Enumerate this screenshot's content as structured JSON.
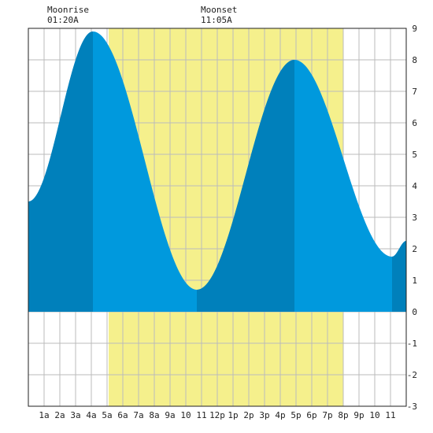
{
  "header": {
    "moonrise_label": "Moonrise",
    "moonrise_time": "01:20A",
    "moonset_label": "Moonset",
    "moonset_time": "11:05A"
  },
  "chart_data": {
    "type": "area",
    "xlabel": "",
    "ylabel": "",
    "xlim": [
      0,
      24
    ],
    "ylim": [
      -3,
      9
    ],
    "grid": true,
    "x_ticks": [
      {
        "x": 1,
        "label": "1a"
      },
      {
        "x": 2,
        "label": "2a"
      },
      {
        "x": 3,
        "label": "3a"
      },
      {
        "x": 4,
        "label": "4a"
      },
      {
        "x": 5,
        "label": "5a"
      },
      {
        "x": 6,
        "label": "6a"
      },
      {
        "x": 7,
        "label": "7a"
      },
      {
        "x": 8,
        "label": "8a"
      },
      {
        "x": 9,
        "label": "9a"
      },
      {
        "x": 10,
        "label": "10"
      },
      {
        "x": 11,
        "label": "11"
      },
      {
        "x": 12,
        "label": "12p"
      },
      {
        "x": 13,
        "label": "1p"
      },
      {
        "x": 14,
        "label": "2p"
      },
      {
        "x": 15,
        "label": "3p"
      },
      {
        "x": 16,
        "label": "4p"
      },
      {
        "x": 17,
        "label": "5p"
      },
      {
        "x": 18,
        "label": "6p"
      },
      {
        "x": 19,
        "label": "7p"
      },
      {
        "x": 20,
        "label": "8p"
      },
      {
        "x": 21,
        "label": "9p"
      },
      {
        "x": 22,
        "label": "10"
      },
      {
        "x": 23,
        "label": "11"
      }
    ],
    "y_ticks": [
      -3,
      -2,
      -1,
      0,
      1,
      2,
      3,
      4,
      5,
      6,
      7,
      8,
      9
    ],
    "tide_extremes": [
      {
        "x": 0.0,
        "y": 3.5
      },
      {
        "x": 4.1,
        "y": 8.9
      },
      {
        "x": 10.7,
        "y": 0.7
      },
      {
        "x": 16.9,
        "y": 8.0
      },
      {
        "x": 23.1,
        "y": 1.75
      },
      {
        "x": 24.0,
        "y": 2.25
      }
    ],
    "daylight": {
      "start": 5.1,
      "end": 20.0
    },
    "moon_bands": [
      {
        "start": 0.0,
        "end": 4.1
      },
      {
        "start": 10.7,
        "end": 16.9
      },
      {
        "start": 23.1,
        "end": 24.0
      }
    ],
    "colors": {
      "tide": "#0099dd",
      "tide_dark": "#0080bb",
      "daylight": "#f5f08c",
      "night": "#ffffff",
      "grid": "#bbbbbb",
      "frame": "#222222"
    }
  }
}
